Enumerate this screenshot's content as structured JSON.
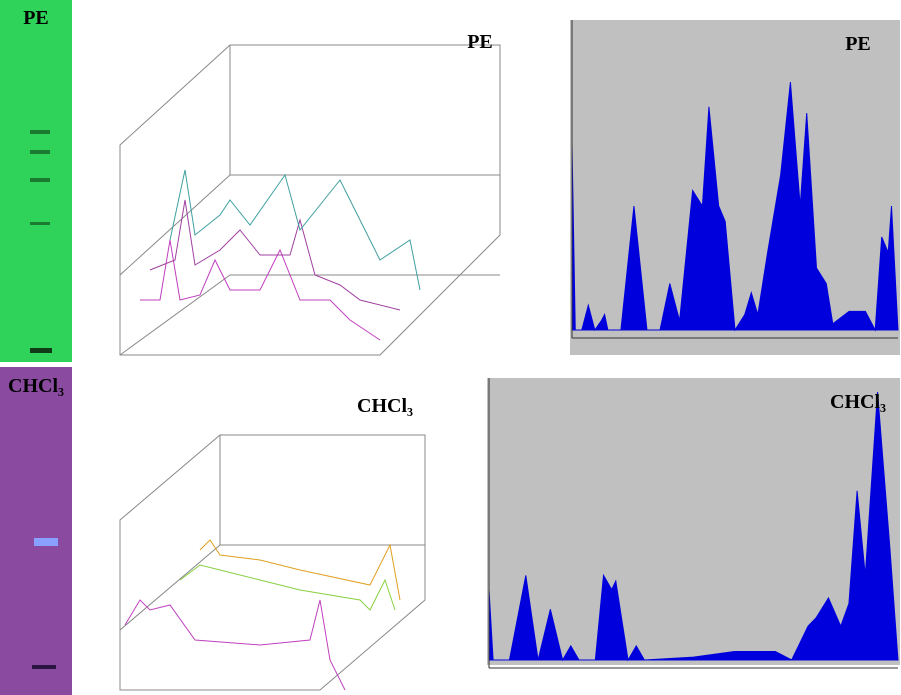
{
  "plates": {
    "top_label": "PE",
    "bottom_label": "CHCl₃"
  },
  "surface_plots": {
    "top_label": "PE",
    "bottom_label": "CHCl₃"
  },
  "chart_data": [
    {
      "type": "area",
      "title": "PE",
      "color": "#0000dd",
      "xlim": [
        0,
        1
      ],
      "ylim": [
        0,
        100
      ],
      "x": [
        0,
        0.01,
        0.03,
        0.05,
        0.07,
        0.09,
        0.1,
        0.11,
        0.15,
        0.19,
        0.23,
        0.27,
        0.3,
        0.33,
        0.37,
        0.4,
        0.42,
        0.45,
        0.47,
        0.5,
        0.53,
        0.55,
        0.57,
        0.6,
        0.64,
        0.67,
        0.7,
        0.72,
        0.75,
        0.78,
        0.8,
        0.85,
        0.9,
        0.93,
        0.95,
        0.97,
        0.98,
        1.0
      ],
      "values": [
        60,
        0,
        0,
        8,
        0,
        3,
        5,
        0,
        0,
        40,
        0,
        0,
        15,
        3,
        45,
        40,
        72,
        40,
        35,
        0,
        5,
        12,
        5,
        25,
        50,
        80,
        40,
        70,
        20,
        15,
        2,
        6,
        6,
        0,
        30,
        25,
        40,
        0
      ]
    },
    {
      "type": "area",
      "title": "CHCl₃",
      "color": "#0000dd",
      "xlim": [
        0,
        1
      ],
      "ylim": [
        0,
        100
      ],
      "x": [
        0,
        0.01,
        0.05,
        0.09,
        0.12,
        0.15,
        0.18,
        0.2,
        0.22,
        0.26,
        0.28,
        0.3,
        0.31,
        0.34,
        0.36,
        0.38,
        0.5,
        0.6,
        0.7,
        0.74,
        0.78,
        0.8,
        0.83,
        0.86,
        0.88,
        0.9,
        0.92,
        0.95,
        0.98,
        1.0
      ],
      "values": [
        25,
        0,
        0,
        30,
        0,
        18,
        0,
        5,
        0,
        0,
        30,
        25,
        28,
        0,
        5,
        0,
        1,
        3,
        3,
        0,
        12,
        15,
        22,
        12,
        20,
        60,
        30,
        95,
        40,
        0
      ]
    }
  ]
}
